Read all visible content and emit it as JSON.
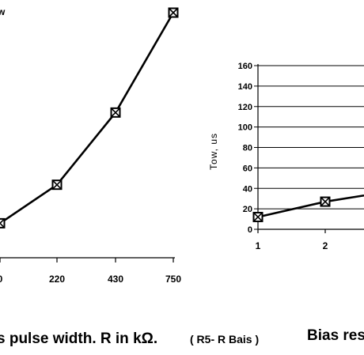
{
  "captions": {
    "left": "s pulse width. R in kΩ.",
    "left_note": "( R5- R Bais )",
    "right": "Bias res",
    "corner_fragment": "w"
  },
  "chart_data": [
    {
      "type": "line",
      "title": "",
      "xlabel": "",
      "ylabel": "",
      "categories": [
        "0",
        "220",
        "430",
        "750"
      ],
      "series": [
        {
          "values": [
            5,
            37,
            97,
            180
          ]
        }
      ],
      "marker": "boxed-x",
      "line_color": "#000000",
      "grid": false
    },
    {
      "type": "line",
      "title": "",
      "xlabel": "",
      "ylabel": "Tow, us",
      "categories": [
        "1",
        "2"
      ],
      "ylim": [
        0,
        160
      ],
      "yticks": [
        0,
        20,
        40,
        60,
        80,
        100,
        120,
        140,
        160
      ],
      "series": [
        {
          "values": [
            12,
            27
          ]
        }
      ],
      "marker": "boxed-x",
      "line_color": "#000000",
      "grid": true
    }
  ]
}
